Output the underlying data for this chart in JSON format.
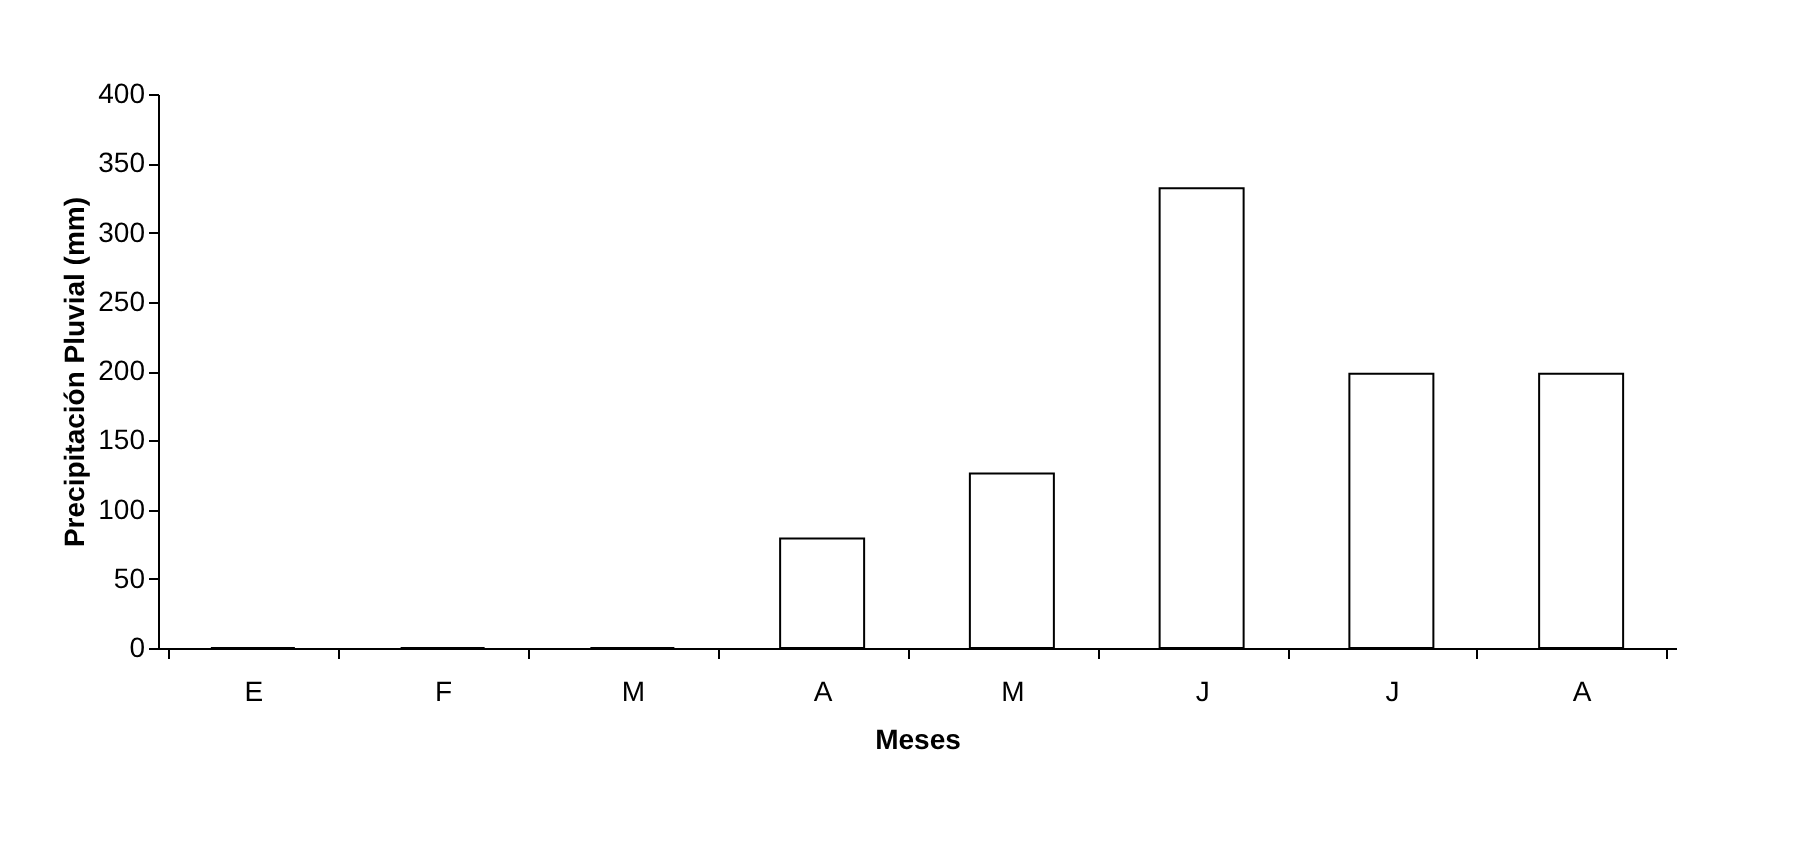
{
  "chart_data": {
    "type": "bar",
    "xlabel": "Meses",
    "ylabel": "Precipitación Pluvial (mm)",
    "categories": [
      "E",
      "F",
      "M",
      "A",
      "M",
      "J",
      "J",
      "A"
    ],
    "values": [
      0,
      0,
      0,
      79,
      126,
      332,
      198,
      198
    ],
    "color": "#ffffff",
    "ylim": [
      0,
      400
    ],
    "yticks": [
      0,
      50,
      100,
      150,
      200,
      250,
      300,
      350,
      400
    ],
    "grid": false
  }
}
